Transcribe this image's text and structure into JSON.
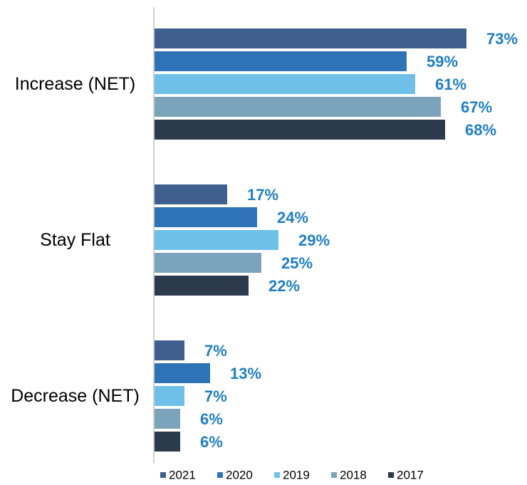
{
  "chart_data": {
    "type": "bar",
    "orientation": "horizontal",
    "categories": [
      "Increase (NET)",
      "Stay Flat",
      "Decrease (NET)"
    ],
    "series": [
      {
        "name": "2021",
        "color": "#3f5f8f",
        "values": [
          73,
          17,
          7
        ],
        "value_labels": [
          "73%",
          "17%",
          "7%"
        ]
      },
      {
        "name": "2020",
        "color": "#2e72b8",
        "values": [
          59,
          24,
          13
        ],
        "value_labels": [
          "59%",
          "24%",
          "13%"
        ]
      },
      {
        "name": "2019",
        "color": "#6fc0e8",
        "values": [
          61,
          29,
          7
        ],
        "value_labels": [
          "61%",
          "29%",
          "7%"
        ]
      },
      {
        "name": "2018",
        "color": "#7ba3bb",
        "values": [
          67,
          25,
          6
        ],
        "value_labels": [
          "67%",
          "25%",
          "6%"
        ]
      },
      {
        "name": "2017",
        "color": "#2b3a4c",
        "values": [
          68,
          22,
          6
        ],
        "value_labels": [
          "68%",
          "22%",
          "6%"
        ]
      }
    ],
    "xlim": [
      0,
      80
    ],
    "label_color": "#1f7fc4",
    "legend": "bottom"
  }
}
